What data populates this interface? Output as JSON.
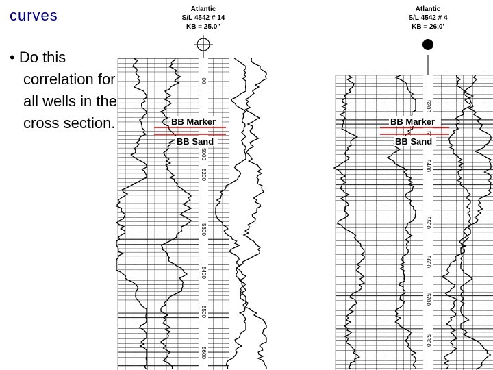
{
  "slide": {
    "heading": "curves",
    "bullet": "Do this correlation for all wells in the cross section."
  },
  "wells": [
    {
      "operator": "Atlantic",
      "name": "S/L 4542 # 14",
      "kb": "KB = 25.0\"",
      "marker": "BB Marker",
      "sand": "BB Sand",
      "depths": [
        "00",
        "5000",
        "5200",
        "5300",
        "5400",
        "5500",
        "5600"
      ]
    },
    {
      "operator": "Atlantic",
      "name": "S/L 4542 # 4",
      "kb": "KB = 26.0'",
      "marker": "BB Marker",
      "sand": "BB Sand",
      "depths": [
        "5200",
        "5300",
        "5400",
        "5500",
        "5600",
        "5700",
        "5800"
      ]
    }
  ]
}
